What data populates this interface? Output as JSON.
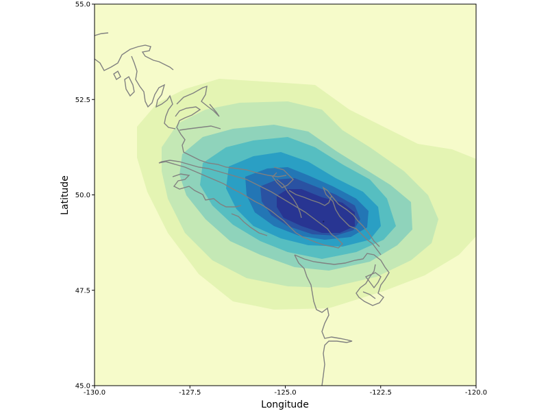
{
  "chart_data": {
    "type": "contour_map",
    "title": "",
    "xlabel": "Longitude",
    "ylabel": "Latitude",
    "xlim": [
      -130.0,
      -120.0
    ],
    "ylim": [
      45.0,
      55.0
    ],
    "x_ticks": [
      -130.0,
      -127.5,
      -125.0,
      -122.5,
      -120.0
    ],
    "y_ticks": [
      45.0,
      47.5,
      50.0,
      52.5,
      55.0
    ],
    "x_tick_labels": [
      "-130.0",
      "-127.5",
      "-125.0",
      "-122.5",
      "-120.0"
    ],
    "y_tick_labels": [
      "45.0",
      "47.5",
      "50.0",
      "52.5",
      "55.0"
    ],
    "grid": false,
    "colormap": "YlGnBu",
    "coastline_color": "#808080",
    "peak": {
      "lon": -124.0,
      "lat": 49.3
    },
    "levels": [
      {
        "level": 0,
        "color": "#f6fbca"
      },
      {
        "level": 1,
        "color": "#e4f4b3"
      },
      {
        "level": 2,
        "color": "#c4e8b5"
      },
      {
        "level": 3,
        "color": "#8fd3bb"
      },
      {
        "level": 4,
        "color": "#56bec1"
      },
      {
        "level": 5,
        "color": "#2a9fc4"
      },
      {
        "level": 6,
        "color": "#2376b5"
      },
      {
        "level": 7,
        "color": "#2a52a2"
      },
      {
        "level": 8,
        "color": "#283592"
      }
    ]
  }
}
